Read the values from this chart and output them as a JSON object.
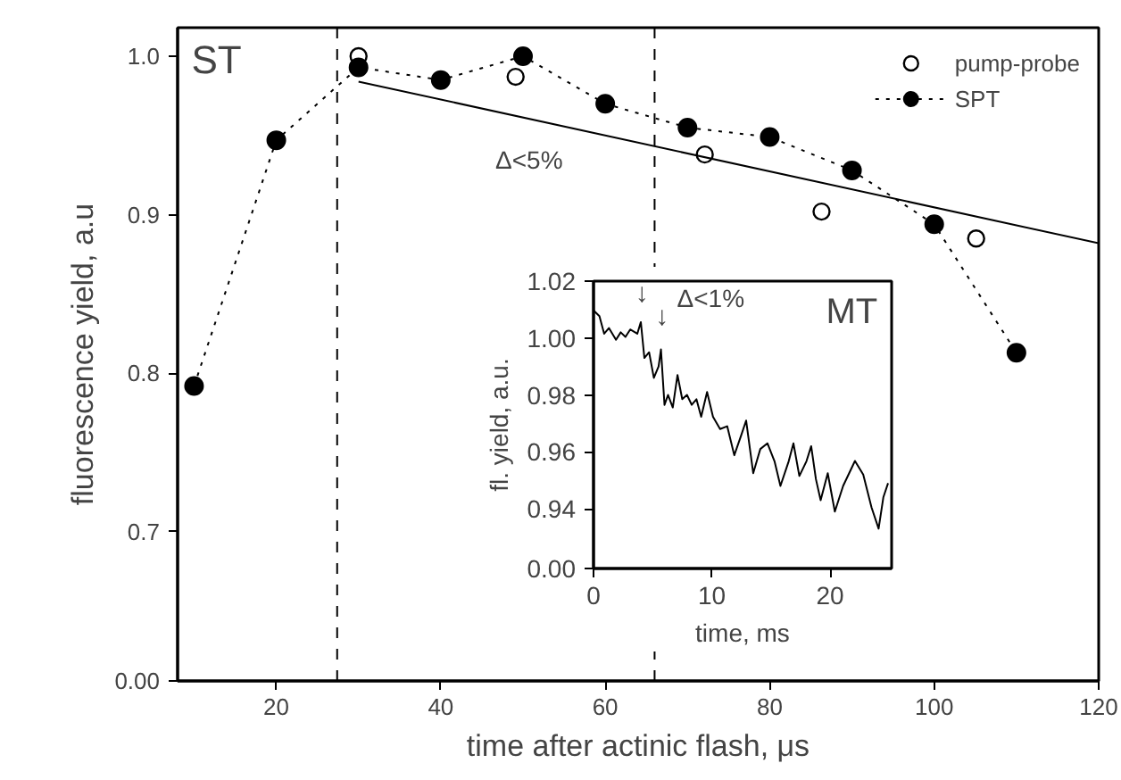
{
  "chart_data": [
    {
      "type": "scatter",
      "xlabel": "time after actinic flash, μs",
      "ylabel": "fluorescence yield, a.u",
      "xlim": [
        8,
        120
      ],
      "ylim": [
        0.606,
        1.018
      ],
      "xticks": [
        20,
        40,
        60,
        80,
        100,
        120
      ],
      "yticks": [
        {
          "value": 0.606,
          "label": null
        },
        0.7,
        0.8,
        0.9,
        {
          "value": 1.0,
          "label": "1.0"
        }
      ],
      "legend": "top right",
      "grid": false,
      "series": [
        {
          "name": "pump-probe",
          "type": "scatter",
          "marker": "circle",
          "color": "#000000",
          "x": [
            30,
            49.1,
            72.1,
            86.3,
            105.1
          ],
          "values": [
            1.0,
            0.987,
            0.938,
            0.902,
            0.885
          ]
        },
        {
          "name": "SPT",
          "type": "line",
          "marker": "circle",
          "line_style": "dotted",
          "color": "#000000",
          "x": [
            10,
            20,
            30,
            40,
            50,
            60,
            70,
            80,
            90,
            100,
            110
          ],
          "values": [
            0.792,
            0.947,
            0.993,
            0.985,
            1.0,
            0.97,
            0.955,
            0.949,
            0.928,
            0.894,
            0.813
          ]
        },
        {
          "type": "line",
          "marker": "none",
          "line_style": "solid",
          "color": "#000000",
          "x": [
            30,
            120
          ],
          "values": [
            0.984,
            0.882
          ]
        }
      ],
      "ref_lines": [
        {
          "axis": "x",
          "value": 27.4,
          "line_style": "dashed",
          "color": "#000000"
        },
        {
          "axis": "x",
          "value": 66.0,
          "line_style": "dashed",
          "color": "#000000"
        }
      ],
      "annotations": [
        "ST",
        "Δ<5%",
        "0.00"
      ]
    },
    {
      "type": "line",
      "xlabel": "time, ms",
      "ylabel": "fl. yield, a.u.",
      "xlim": [
        0,
        25.2
      ],
      "ylim": [
        0.919,
        1.02
      ],
      "xticks": [
        0,
        10,
        20
      ],
      "yticks": [
        {
          "value": 0.919,
          "label": null
        },
        0.94,
        0.96,
        0.98,
        {
          "value": 1.0,
          "label": "1.00"
        },
        1.02
      ],
      "grid": false,
      "series": [
        {
          "color": "#000000",
          "line_style": "solid",
          "x": [
            0,
            0.5,
            0.9,
            1.3,
            1.9,
            2.3,
            2.7,
            3.1,
            3.7,
            4.0,
            4.3,
            4.7,
            5.1,
            5.5,
            5.7,
            6.0,
            6.3,
            6.7,
            7.1,
            7.5,
            7.9,
            8.3,
            8.7,
            9.1,
            9.6,
            10.1,
            10.7,
            11.3,
            11.9,
            12.5,
            12.9,
            13.5,
            14.1,
            14.7,
            15.3,
            15.8,
            16.5,
            16.9,
            17.4,
            18.0,
            18.4,
            18.8,
            19.2,
            19.8,
            20.4,
            21.1,
            22.1,
            22.8,
            23.5,
            24.1,
            24.5,
            24.9
          ],
          "values": [
            1.0097,
            1.0077,
            1.0015,
            1.0035,
            0.9994,
            1.002,
            1.0004,
            1.003,
            1.0015,
            1.0056,
            0.993,
            0.995,
            0.986,
            0.99,
            0.996,
            0.9765,
            0.98,
            0.9756,
            0.987,
            0.9785,
            0.98,
            0.9765,
            0.9785,
            0.9723,
            0.981,
            0.9723,
            0.968,
            0.969,
            0.9588,
            0.966,
            0.971,
            0.9525,
            0.961,
            0.963,
            0.9567,
            0.948,
            0.9567,
            0.963,
            0.9515,
            0.9567,
            0.962,
            0.9504,
            0.943,
            0.9525,
            0.939,
            0.948,
            0.9568,
            0.952,
            0.9405,
            0.933,
            0.944,
            0.949
          ]
        }
      ],
      "annotations": [
        "MT",
        "Δ<1%",
        "0.00",
        "↓",
        "↓"
      ]
    }
  ]
}
